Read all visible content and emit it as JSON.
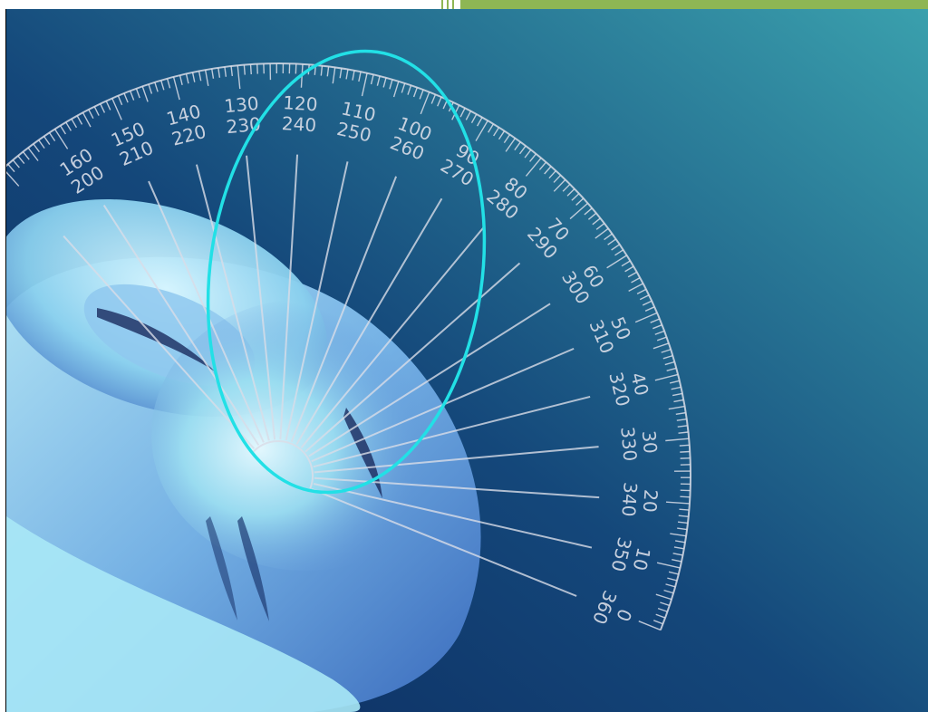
{
  "colors": {
    "background_dark": "#0c2a5e",
    "background_light": "#3aa0ad",
    "accent_bar": "#8eb654",
    "ellipse_highlight": "#22e0e6",
    "protractor_ink": "#d9dde8"
  },
  "protractor": {
    "outer_labels": [
      "0",
      "10",
      "20",
      "30",
      "40",
      "50",
      "60",
      "70",
      "80",
      "90",
      "100",
      "110",
      "120",
      "130",
      "140",
      "150",
      "160"
    ],
    "inner_labels": [
      "360",
      "350",
      "340",
      "330",
      "320",
      "310",
      "300",
      "290",
      "280",
      "270",
      "260",
      "250",
      "240",
      "230",
      "220",
      "210",
      "200"
    ]
  }
}
